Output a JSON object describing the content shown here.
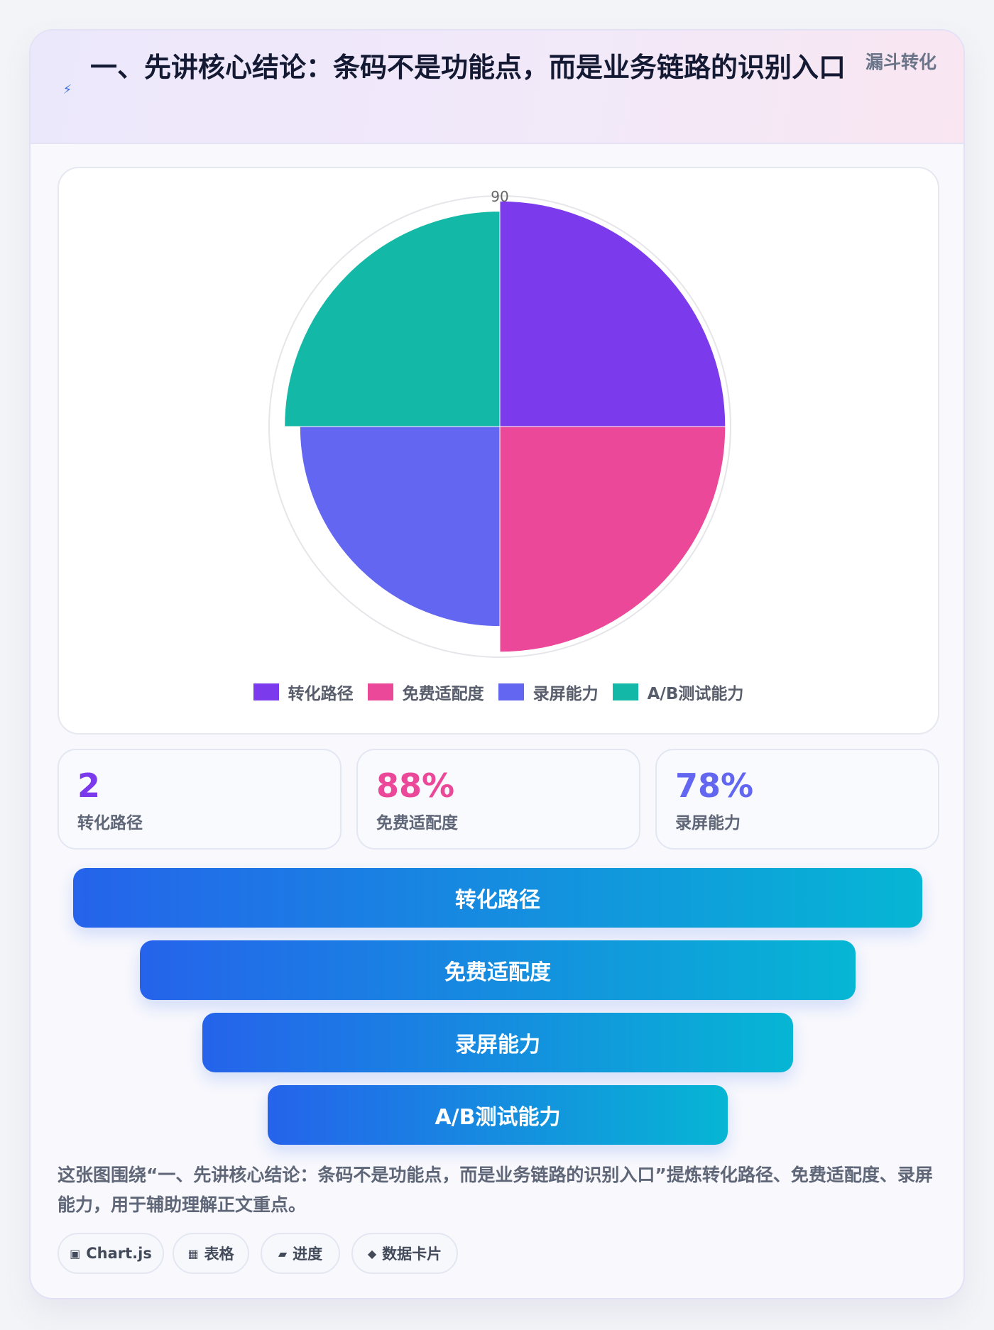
{
  "header": {
    "title": "一、先讲核心结论：条码不是功能点，而是业务链路的识别入口",
    "tag": "漏斗转化",
    "icon": "lightning-icon"
  },
  "chart_data": {
    "type": "polarArea",
    "categories": [
      "转化路径",
      "免费适配度",
      "录屏能力",
      "A/B测试能力"
    ],
    "values": [
      88,
      88,
      78,
      84
    ],
    "colors": [
      "#7c3aed",
      "#ec4899",
      "#6366f1",
      "#14b8a6"
    ],
    "rmax": 90,
    "tick_label": "90",
    "legend_position": "bottom"
  },
  "stats": [
    {
      "value": "2",
      "label": "转化路径",
      "color": "#7c3aed"
    },
    {
      "value": "88%",
      "label": "免费适配度",
      "color": "#ec4899"
    },
    {
      "value": "78%",
      "label": "录屏能力",
      "color": "#6366f1"
    }
  ],
  "funnel": [
    "转化路径",
    "免费适配度",
    "录屏能力",
    "A/B测试能力"
  ],
  "caption": "这张图围绕“一、先讲核心结论：条码不是功能点，而是业务链路的识别入口”提炼转化路径、免费适配度、录屏能力，用于辅助理解正文重点。",
  "chips": [
    {
      "icon": "▣",
      "label": "Chart.js"
    },
    {
      "icon": "▦",
      "label": "表格"
    },
    {
      "icon": "▰",
      "label": "进度"
    },
    {
      "icon": "◆",
      "label": "数据卡片"
    }
  ]
}
